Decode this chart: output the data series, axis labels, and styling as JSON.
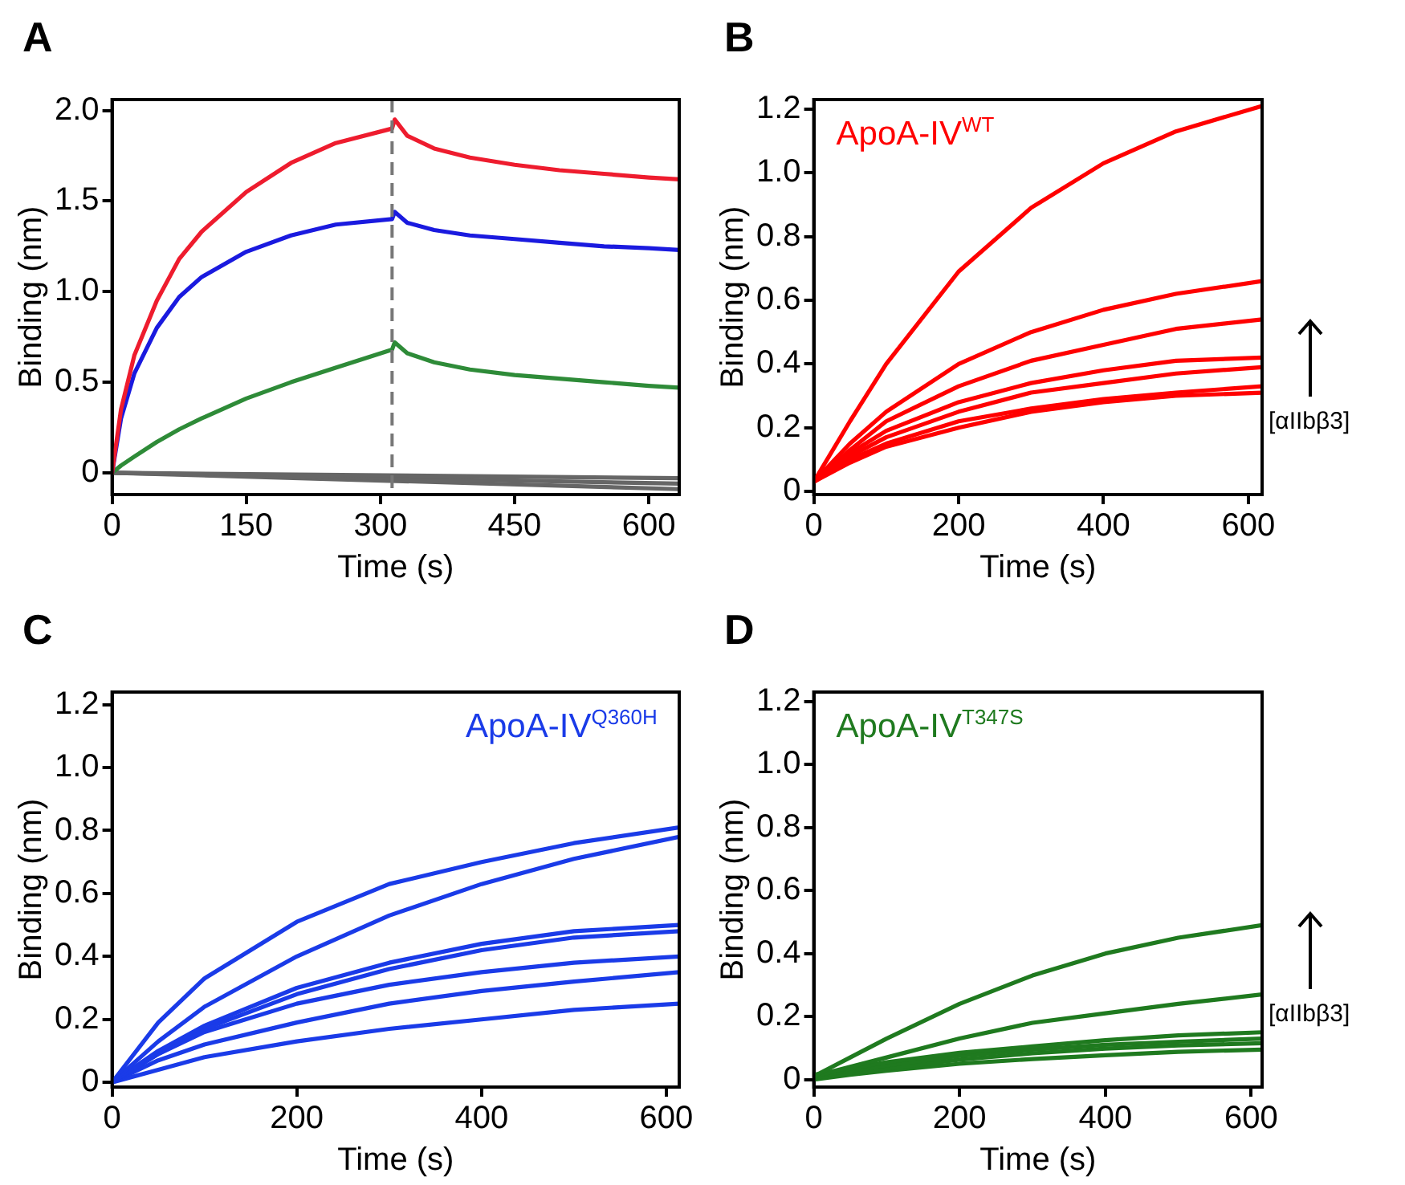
{
  "chart_data": [
    {
      "type": "line",
      "title": "A",
      "xlabel": "Time (s)",
      "ylabel": "Binding (nm)",
      "xlim": [
        0,
        634
      ],
      "ylim": [
        -0.12,
        2.06
      ],
      "xticks": [
        0,
        150,
        300,
        450,
        600
      ],
      "yticks": [
        {
          "value": 0,
          "label": "0"
        },
        {
          "value": 0.5,
          "label": "0.5"
        },
        {
          "value": 1,
          "label": "1.0"
        },
        {
          "value": 1.5,
          "label": "1.5"
        },
        {
          "value": 2,
          "label": "2.0"
        }
      ],
      "grid": false,
      "ref_lines": [
        {
          "axis": "x",
          "value": 313,
          "color": "#777777",
          "line_style": "dashed"
        }
      ],
      "series": [
        {
          "color": "#ee1c2e",
          "x": [
            0,
            10,
            25,
            50,
            75,
            100,
            150,
            200,
            250,
            313,
            316,
            330,
            360,
            400,
            450,
            500,
            550,
            600,
            634
          ],
          "values": [
            0,
            0.35,
            0.65,
            0.95,
            1.18,
            1.33,
            1.55,
            1.71,
            1.82,
            1.9,
            1.95,
            1.86,
            1.79,
            1.74,
            1.7,
            1.67,
            1.65,
            1.63,
            1.62
          ]
        },
        {
          "color": "#1a1adf",
          "x": [
            0,
            10,
            25,
            50,
            75,
            100,
            150,
            200,
            250,
            313,
            316,
            330,
            360,
            400,
            450,
            500,
            550,
            600,
            634
          ],
          "values": [
            0,
            0.3,
            0.55,
            0.8,
            0.97,
            1.08,
            1.22,
            1.31,
            1.37,
            1.4,
            1.44,
            1.38,
            1.34,
            1.31,
            1.29,
            1.27,
            1.25,
            1.24,
            1.23
          ]
        },
        {
          "color": "#2e8b38",
          "x": [
            0,
            10,
            25,
            50,
            75,
            100,
            150,
            200,
            250,
            313,
            316,
            330,
            360,
            400,
            450,
            500,
            550,
            600,
            634
          ],
          "values": [
            0,
            0.04,
            0.09,
            0.17,
            0.24,
            0.3,
            0.41,
            0.5,
            0.58,
            0.68,
            0.72,
            0.66,
            0.61,
            0.57,
            0.54,
            0.52,
            0.5,
            0.48,
            0.47
          ]
        },
        {
          "color": "#666666",
          "x": [
            0,
            634
          ],
          "values": [
            0,
            -0.03
          ]
        },
        {
          "color": "#666666",
          "x": [
            0,
            634
          ],
          "values": [
            0,
            -0.06
          ]
        },
        {
          "color": "#666666",
          "x": [
            0,
            634
          ],
          "values": [
            0,
            -0.09
          ]
        }
      ]
    },
    {
      "type": "line",
      "title": "B",
      "xlabel": "Time (s)",
      "ylabel": "Binding (nm)",
      "xlim": [
        0,
        619
      ],
      "ylim": [
        -0.01,
        1.23
      ],
      "xticks": [
        0,
        200,
        400,
        600
      ],
      "yticks": [
        {
          "value": 0,
          "label": "0"
        },
        {
          "value": 0.2,
          "label": "0.2"
        },
        {
          "value": 0.4,
          "label": "0.4"
        },
        {
          "value": 0.6,
          "label": "0.6"
        },
        {
          "value": 0.8,
          "label": "0.8"
        },
        {
          "value": 1,
          "label": "1.0"
        },
        {
          "value": 1.2,
          "label": "1.2"
        }
      ],
      "grid": false,
      "annotations": [
        "ApoA-IV$^{WT}$",
        "[αIIbβ3]"
      ],
      "series": [
        {
          "color": "#ff0000",
          "x": [
            0,
            50,
            100,
            200,
            300,
            400,
            500,
            619
          ],
          "values": [
            0.03,
            0.22,
            0.4,
            0.69,
            0.89,
            1.03,
            1.13,
            1.21
          ]
        },
        {
          "color": "#ff0000",
          "x": [
            0,
            50,
            100,
            200,
            300,
            400,
            500,
            619
          ],
          "values": [
            0.03,
            0.15,
            0.25,
            0.4,
            0.5,
            0.57,
            0.62,
            0.66
          ]
        },
        {
          "color": "#ff0000",
          "x": [
            0,
            50,
            100,
            200,
            300,
            400,
            500,
            619
          ],
          "values": [
            0.03,
            0.13,
            0.22,
            0.33,
            0.41,
            0.46,
            0.51,
            0.54
          ]
        },
        {
          "color": "#ff0000",
          "x": [
            0,
            50,
            100,
            200,
            300,
            400,
            500,
            619
          ],
          "values": [
            0.03,
            0.12,
            0.19,
            0.28,
            0.34,
            0.38,
            0.41,
            0.42
          ]
        },
        {
          "color": "#ff0000",
          "x": [
            0,
            50,
            100,
            200,
            300,
            400,
            500,
            619
          ],
          "values": [
            0.03,
            0.11,
            0.17,
            0.25,
            0.31,
            0.34,
            0.37,
            0.39
          ]
        },
        {
          "color": "#ff0000",
          "x": [
            0,
            50,
            100,
            200,
            300,
            400,
            500,
            619
          ],
          "values": [
            0.03,
            0.1,
            0.15,
            0.22,
            0.26,
            0.29,
            0.31,
            0.33
          ]
        },
        {
          "color": "#ff0000",
          "x": [
            0,
            50,
            100,
            200,
            300,
            400,
            500,
            619
          ],
          "values": [
            0.03,
            0.09,
            0.14,
            0.2,
            0.25,
            0.28,
            0.3,
            0.31
          ]
        }
      ]
    },
    {
      "type": "line",
      "title": "C",
      "xlabel": "Time (s)",
      "ylabel": "Binding (nm)",
      "xlim": [
        0,
        614
      ],
      "ylim": [
        -0.015,
        1.24
      ],
      "xticks": [
        0,
        200,
        400,
        600
      ],
      "yticks": [
        {
          "value": 0,
          "label": "0"
        },
        {
          "value": 0.2,
          "label": "0.2"
        },
        {
          "value": 0.4,
          "label": "0.4"
        },
        {
          "value": 0.6,
          "label": "0.6"
        },
        {
          "value": 0.8,
          "label": "0.8"
        },
        {
          "value": 1,
          "label": "1.0"
        },
        {
          "value": 1.2,
          "label": "1.2"
        }
      ],
      "grid": false,
      "annotations": [
        "ApoA-IV$^{Q360H}$"
      ],
      "series": [
        {
          "color": "#1a3be8",
          "x": [
            0,
            50,
            100,
            200,
            300,
            400,
            500,
            614
          ],
          "values": [
            0,
            0.19,
            0.33,
            0.51,
            0.63,
            0.7,
            0.76,
            0.81
          ]
        },
        {
          "color": "#1a3be8",
          "x": [
            0,
            50,
            100,
            200,
            300,
            400,
            500,
            614
          ],
          "values": [
            0,
            0.13,
            0.24,
            0.4,
            0.53,
            0.63,
            0.71,
            0.78
          ]
        },
        {
          "color": "#1a3be8",
          "x": [
            0,
            50,
            100,
            200,
            300,
            400,
            500,
            614
          ],
          "values": [
            0,
            0.1,
            0.18,
            0.3,
            0.38,
            0.44,
            0.48,
            0.5
          ]
        },
        {
          "color": "#1a3be8",
          "x": [
            0,
            50,
            100,
            200,
            300,
            400,
            500,
            614
          ],
          "values": [
            0,
            0.09,
            0.17,
            0.28,
            0.36,
            0.42,
            0.46,
            0.48
          ]
        },
        {
          "color": "#1a3be8",
          "x": [
            0,
            50,
            100,
            200,
            300,
            400,
            500,
            614
          ],
          "values": [
            0,
            0.09,
            0.16,
            0.25,
            0.31,
            0.35,
            0.38,
            0.4
          ]
        },
        {
          "color": "#1a3be8",
          "x": [
            0,
            50,
            100,
            200,
            300,
            400,
            500,
            614
          ],
          "values": [
            0,
            0.07,
            0.12,
            0.19,
            0.25,
            0.29,
            0.32,
            0.35
          ]
        },
        {
          "color": "#1a3be8",
          "x": [
            0,
            50,
            100,
            200,
            300,
            400,
            500,
            614
          ],
          "values": [
            0,
            0.04,
            0.08,
            0.13,
            0.17,
            0.2,
            0.23,
            0.25
          ]
        }
      ]
    },
    {
      "type": "line",
      "title": "D",
      "xlabel": "Time (s)",
      "ylabel": "Binding (nm)",
      "xlim": [
        0,
        615
      ],
      "ylim": [
        -0.024,
        1.23
      ],
      "xticks": [
        0,
        200,
        400,
        600
      ],
      "yticks": [
        {
          "value": 0,
          "label": "0"
        },
        {
          "value": 0.2,
          "label": "0.2"
        },
        {
          "value": 0.4,
          "label": "0.4"
        },
        {
          "value": 0.6,
          "label": "0.6"
        },
        {
          "value": 0.8,
          "label": "0.8"
        },
        {
          "value": 1,
          "label": "1.0"
        },
        {
          "value": 1.2,
          "label": "1.2"
        }
      ],
      "grid": false,
      "annotations": [
        "ApoA-IV$^{T347S}$",
        "[αIIbβ3]"
      ],
      "series": [
        {
          "color": "#1f7a1f",
          "x": [
            0,
            50,
            100,
            200,
            300,
            400,
            500,
            615
          ],
          "values": [
            0.01,
            0.07,
            0.13,
            0.24,
            0.33,
            0.4,
            0.45,
            0.49
          ]
        },
        {
          "color": "#1f7a1f",
          "x": [
            0,
            50,
            100,
            200,
            300,
            400,
            500,
            615
          ],
          "values": [
            0.01,
            0.04,
            0.07,
            0.13,
            0.18,
            0.21,
            0.24,
            0.27
          ]
        },
        {
          "color": "#1f7a1f",
          "x": [
            0,
            50,
            100,
            200,
            300,
            400,
            500,
            615
          ],
          "values": [
            0.015,
            0.035,
            0.055,
            0.085,
            0.105,
            0.125,
            0.14,
            0.15
          ]
        },
        {
          "color": "#1f7a1f",
          "x": [
            0,
            50,
            100,
            200,
            300,
            400,
            500,
            615
          ],
          "values": [
            0.01,
            0.028,
            0.045,
            0.075,
            0.095,
            0.11,
            0.12,
            0.13
          ]
        },
        {
          "color": "#1f7a1f",
          "x": [
            0,
            50,
            100,
            200,
            300,
            400,
            500,
            615
          ],
          "values": [
            0.005,
            0.02,
            0.035,
            0.063,
            0.083,
            0.098,
            0.108,
            0.115
          ]
        },
        {
          "color": "#1f7a1f",
          "x": [
            0,
            50,
            100,
            200,
            300,
            400,
            500,
            615
          ],
          "values": [
            0,
            0.015,
            0.028,
            0.05,
            0.065,
            0.077,
            0.088,
            0.095
          ]
        }
      ]
    }
  ]
}
